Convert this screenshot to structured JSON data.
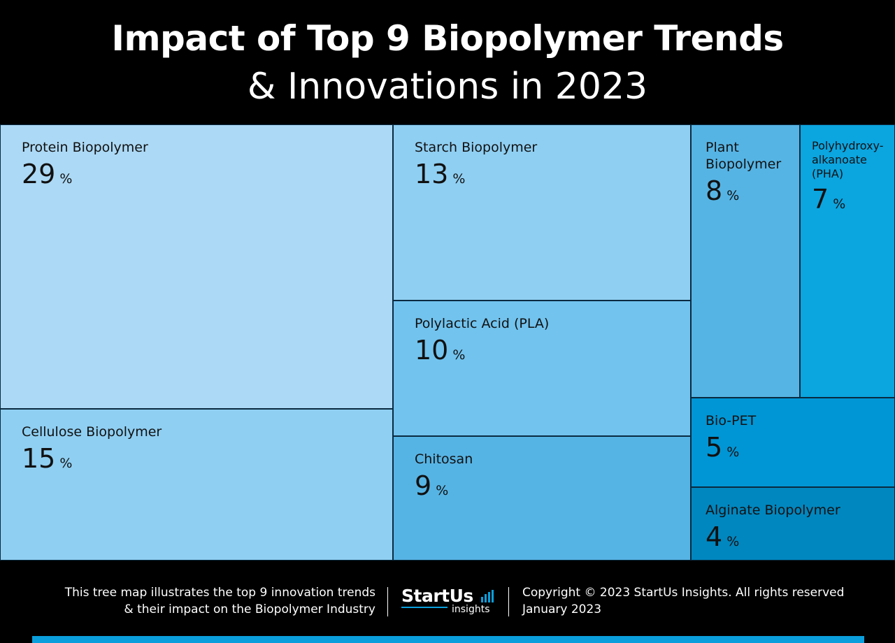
{
  "header": {
    "title_line1": "Impact of Top 9 Biopolymer Trends",
    "title_line2": "& Innovations in 2023"
  },
  "chart_data": {
    "type": "treemap",
    "unit": "%",
    "items": [
      {
        "name": "Protein Biopolymer",
        "value": 29,
        "color": "#acd9f5"
      },
      {
        "name": "Cellulose Biopolymer",
        "value": 15,
        "color": "#8fcff2"
      },
      {
        "name": "Starch Biopolymer",
        "value": 13,
        "color": "#8fcff2"
      },
      {
        "name": "Polylactic Acid (PLA)",
        "value": 10,
        "color": "#72c3ee"
      },
      {
        "name": "Chitosan",
        "value": 9,
        "color": "#56b4e4"
      },
      {
        "name": "Plant\nBiopolymer",
        "value": 8,
        "color": "#56b4e4"
      },
      {
        "name": "Polyhydroxy-\nalkanoate\n(PHA)",
        "value": 7,
        "color": "#0ba5e0"
      },
      {
        "name": "Bio-PET",
        "value": 5,
        "color": "#0096d5"
      },
      {
        "name": "Alginate Biopolymer",
        "value": 4,
        "color": "#0087bf"
      }
    ]
  },
  "footer": {
    "description_line1": "This tree map illustrates the top 9 innovation trends",
    "description_line2": "& their impact on the Biopolymer Industry",
    "logo_name": "StartUs",
    "logo_sub": "insights",
    "copyright": "Copyright © 2023 StartUs Insights. All rights reserved",
    "date": "January 2023"
  },
  "colors": {
    "accent": "#0a9fdc",
    "background": "#000000"
  }
}
